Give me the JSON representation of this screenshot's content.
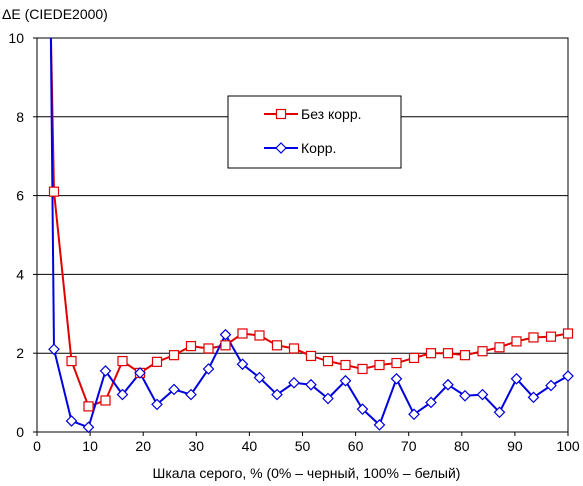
{
  "chart_data": {
    "type": "line",
    "ylabel": "ΔE (CIEDE2000)",
    "xlabel": "Шкала серого, % (0% – черный, 100% – белый)",
    "xlim": [
      0,
      100
    ],
    "ylim": [
      0,
      10
    ],
    "x_ticks": [
      "0",
      "10",
      "20",
      "30",
      "40",
      "50",
      "60",
      "70",
      "80",
      "90",
      "100"
    ],
    "y_ticks": [
      "0",
      "2",
      "4",
      "6",
      "8",
      "10"
    ],
    "grid": "horizontal",
    "legend_position": "upper-middle",
    "series": [
      {
        "name": "Без корр.",
        "color": "#e00000",
        "marker": "square",
        "x": [
          1.8,
          2.6,
          3.2,
          6.5,
          9.7,
          12.9,
          16.1,
          19.4,
          22.6,
          25.8,
          29.0,
          32.3,
          35.5,
          38.7,
          41.9,
          45.2,
          48.4,
          51.6,
          54.8,
          58.1,
          61.3,
          64.5,
          67.7,
          71.0,
          74.2,
          77.4,
          80.6,
          83.9,
          87.1,
          90.3,
          93.5,
          96.8,
          100.0
        ],
        "y": [
          10.2,
          10.2,
          6.1,
          1.8,
          0.65,
          0.8,
          1.8,
          1.5,
          1.78,
          1.95,
          2.18,
          2.12,
          2.2,
          2.5,
          2.45,
          2.2,
          2.12,
          1.93,
          1.8,
          1.7,
          1.6,
          1.7,
          1.75,
          1.88,
          2.0,
          2.0,
          1.95,
          2.05,
          2.15,
          2.3,
          2.4,
          2.42,
          2.5
        ]
      },
      {
        "name": "Корр.",
        "color": "#0000e0",
        "marker": "diamond",
        "x": [
          1.8,
          2.6,
          3.2,
          6.5,
          9.7,
          12.9,
          16.1,
          19.4,
          22.6,
          25.8,
          29.0,
          32.3,
          35.5,
          38.7,
          41.9,
          45.2,
          48.4,
          51.6,
          54.8,
          58.1,
          61.3,
          64.5,
          67.7,
          71.0,
          74.2,
          77.4,
          80.6,
          83.9,
          87.1,
          90.3,
          93.5,
          96.8,
          100.0
        ],
        "y": [
          10.2,
          10.2,
          2.1,
          0.28,
          0.12,
          1.55,
          0.95,
          1.5,
          0.7,
          1.08,
          0.95,
          1.6,
          2.47,
          1.72,
          1.38,
          0.95,
          1.25,
          1.2,
          0.85,
          1.3,
          0.58,
          0.18,
          1.35,
          0.45,
          0.75,
          1.2,
          0.92,
          0.95,
          0.5,
          1.35,
          0.88,
          1.18,
          1.42
        ]
      }
    ]
  }
}
